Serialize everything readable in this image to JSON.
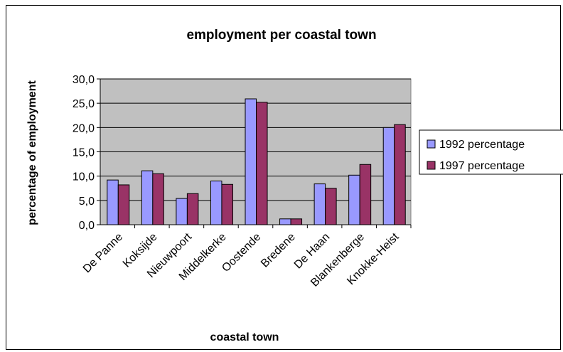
{
  "chart_data": {
    "type": "bar",
    "title": "employment per coastal town",
    "xlabel": "coastal town",
    "ylabel": "percentage of employment",
    "categories": [
      "De Panne",
      "Koksijde",
      "Nieuwpoort",
      "Middelkerke",
      "Oostende",
      "Bredene",
      "De Haan",
      "Blankenberge",
      "Knokke-Heist"
    ],
    "series": [
      {
        "name": "1992 percentage",
        "color": "#9999ff",
        "values": [
          9.2,
          11.1,
          5.4,
          9.0,
          25.9,
          1.2,
          8.4,
          10.2,
          20.0
        ]
      },
      {
        "name": "1997 percentage",
        "color": "#993366",
        "values": [
          8.2,
          10.5,
          6.4,
          8.3,
          25.2,
          1.2,
          7.5,
          12.4,
          20.6
        ]
      }
    ],
    "ylim": [
      0,
      30
    ],
    "yticks": [
      "0,0",
      "5,0",
      "10,0",
      "15,0",
      "20,0",
      "25,0",
      "30,0"
    ],
    "plot_background": "#c0c0c0",
    "grid": true,
    "legend_position": "right"
  }
}
